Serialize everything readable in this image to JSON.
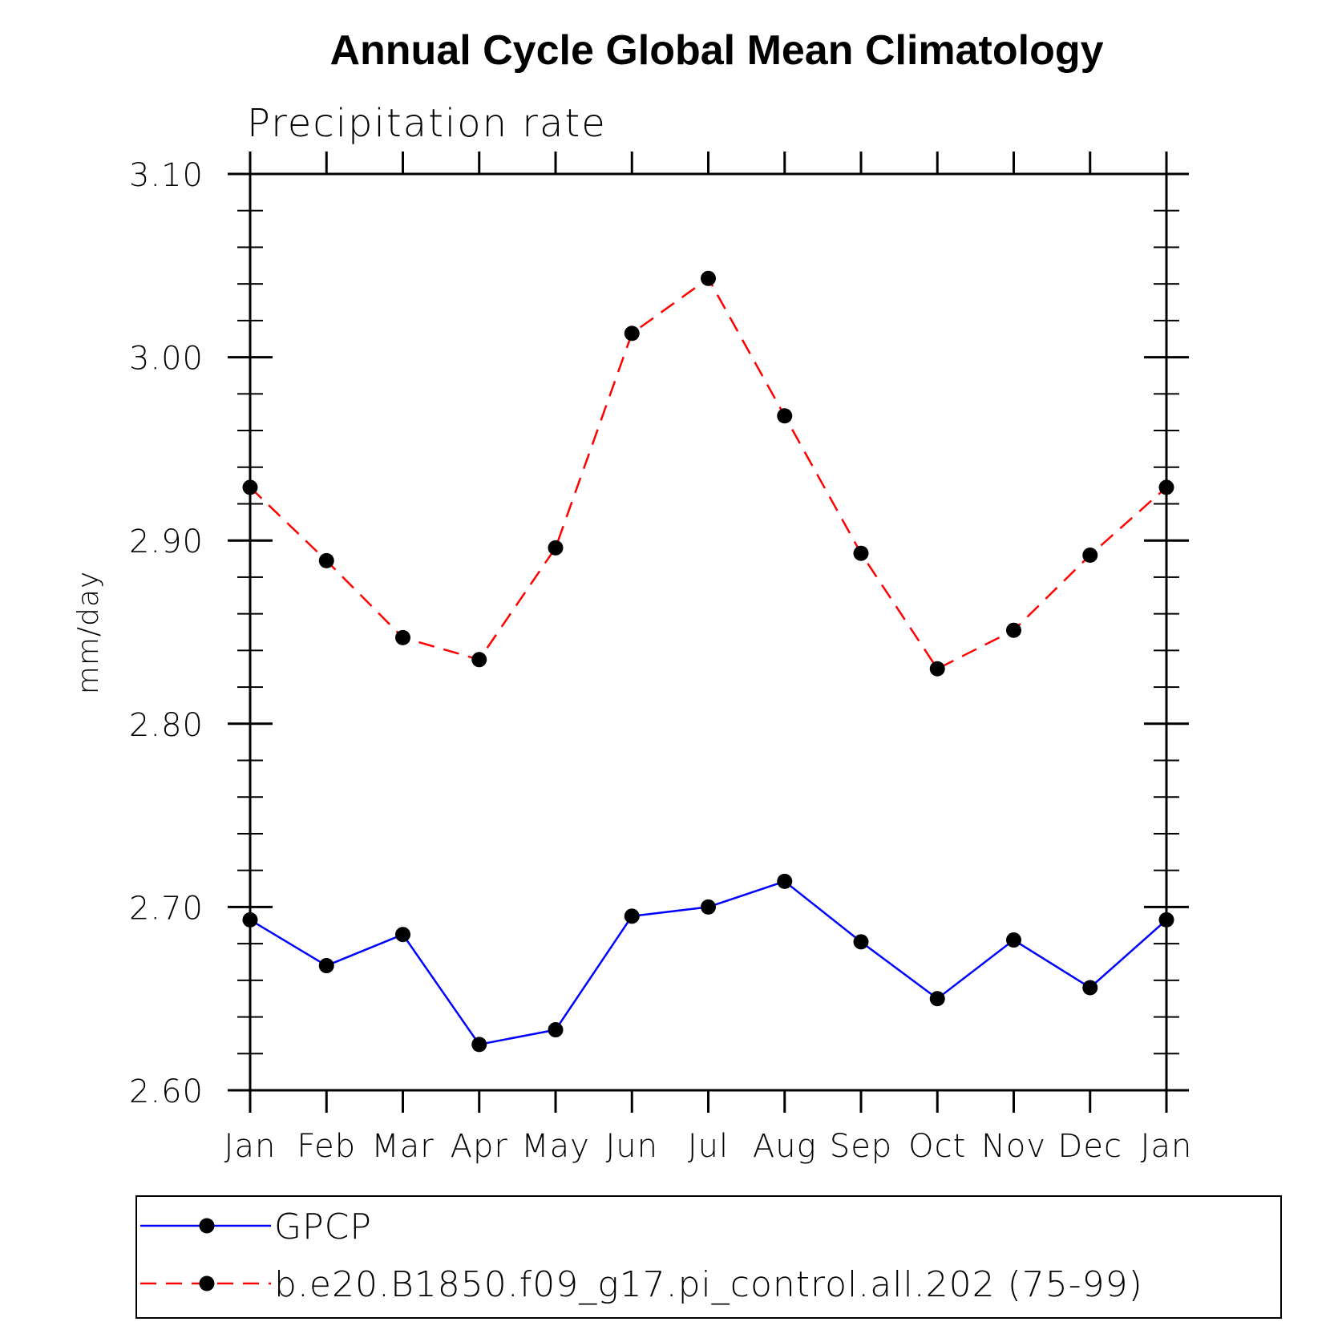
{
  "chart_data": {
    "type": "line",
    "title": "Annual Cycle Global Mean Climatology",
    "subtitle": "Precipitation rate",
    "xlabel": "",
    "ylabel": "mm/day",
    "categories": [
      "Jan",
      "Feb",
      "Mar",
      "Apr",
      "May",
      "Jun",
      "Jul",
      "Aug",
      "Sep",
      "Oct",
      "Nov",
      "Dec",
      "Jan"
    ],
    "ylim": [
      2.6,
      3.1
    ],
    "yticks": [
      2.6,
      2.7,
      2.8,
      2.9,
      3.0,
      3.1
    ],
    "ytick_labels": [
      "2.60",
      "2.70",
      "2.80",
      "2.90",
      "3.00",
      "3.10"
    ],
    "y_minor_step": 0.02,
    "grid": false,
    "legend_position": "bottom",
    "series": [
      {
        "name": "GPCP",
        "color": "#0000ff",
        "line_style": "solid",
        "marker": "filled-circle",
        "values": [
          2.693,
          2.668,
          2.685,
          2.625,
          2.633,
          2.695,
          2.7,
          2.714,
          2.681,
          2.65,
          2.682,
          2.656,
          2.693
        ]
      },
      {
        "name": "b.e20.B1850.f09_g17.pi_control.all.202 (75-99)",
        "color": "#ff0000",
        "line_style": "dashed",
        "marker": "filled-circle",
        "values": [
          2.929,
          2.889,
          2.847,
          2.835,
          2.896,
          3.013,
          3.043,
          2.968,
          2.893,
          2.83,
          2.851,
          2.892,
          2.929
        ]
      }
    ]
  }
}
